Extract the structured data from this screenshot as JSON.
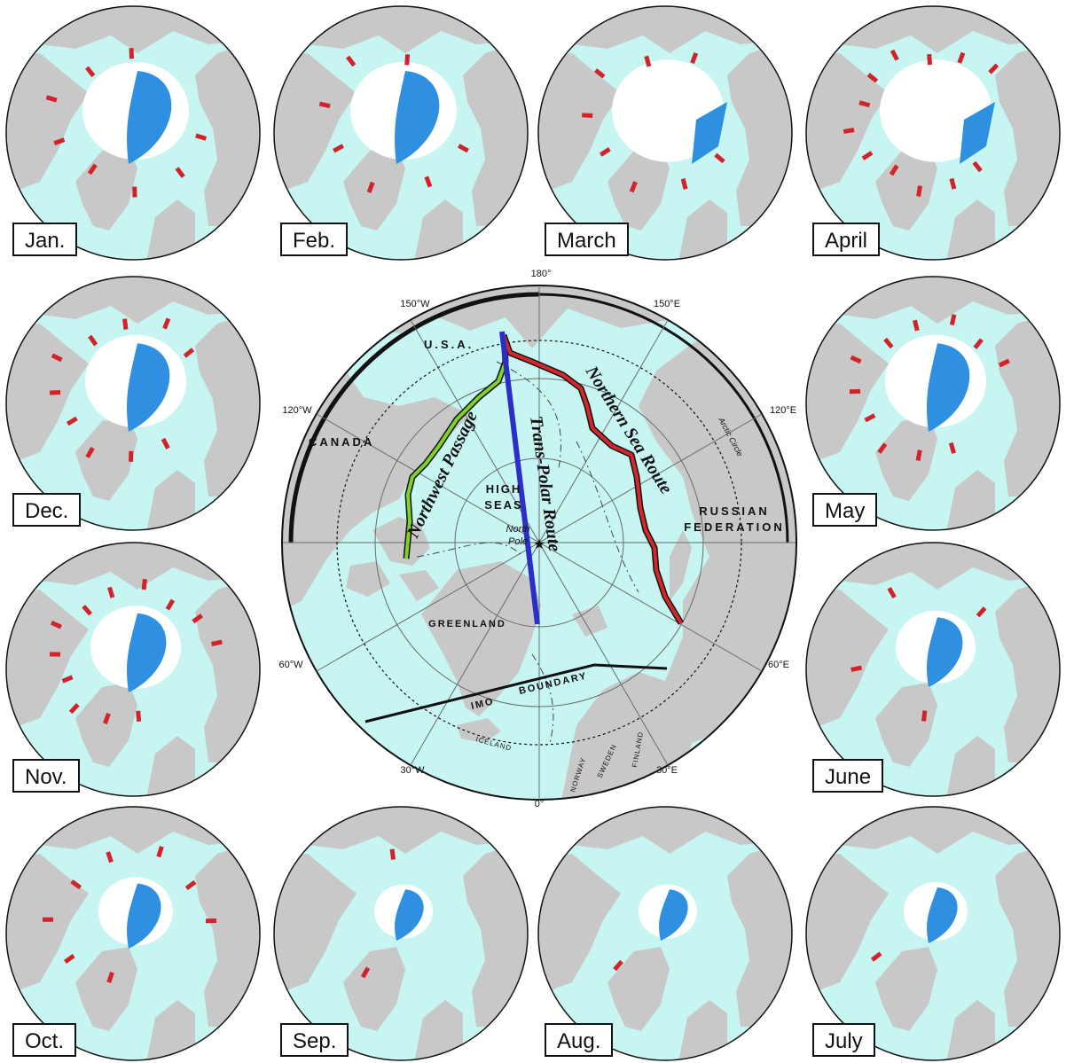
{
  "colors": {
    "ocean": "#c6f5f2",
    "land": "#c8c8c8",
    "ice": "#ffffff",
    "open_water": "#2f8fe0",
    "red_change": "#d2232a",
    "border": "#111111",
    "northwest_passage": "#7fd22a",
    "transpolar_route": "#2b2fc8",
    "northern_sea_route": "#d6262b"
  },
  "months": [
    {
      "label": "Jan.",
      "pos": "top-1"
    },
    {
      "label": "Feb.",
      "pos": "top-2"
    },
    {
      "label": "March",
      "pos": "top-3"
    },
    {
      "label": "April",
      "pos": "top-4"
    },
    {
      "label": "Dec.",
      "pos": "left-1"
    },
    {
      "label": "May",
      "pos": "right-1"
    },
    {
      "label": "Nov.",
      "pos": "left-2"
    },
    {
      "label": "June",
      "pos": "right-2"
    },
    {
      "label": "Oct.",
      "pos": "bottom-1"
    },
    {
      "label": "Sep.",
      "pos": "bottom-2"
    },
    {
      "label": "Aug.",
      "pos": "bottom-3"
    },
    {
      "label": "July",
      "pos": "bottom-4"
    }
  ],
  "center_map": {
    "meridians": {
      "m180": "180°",
      "m150w": "150°W",
      "m150e": "150°E",
      "m120w": "120°W",
      "m120e": "120°E",
      "m60w": "60°W",
      "m60e": "60°E",
      "m30w": "30°W",
      "m30e": "30°E",
      "m0": "0°"
    },
    "labels": {
      "usa": "U.S.A.",
      "canada": "CANADA",
      "high": "HIGH",
      "seas": "SEAS",
      "north": "North",
      "pole": "Pole",
      "russian": "RUSSIAN",
      "federation": "FEDERATION",
      "greenland": "GREENLAND",
      "iceland": "ICELAND",
      "norway": "NORWAY",
      "sweden": "SWEDEN",
      "finland": "FINLAND",
      "arctic_circle": "Arctic Circle",
      "imo": "IMO",
      "boundary": "BOUNDARY"
    },
    "routes": {
      "northwest_passage": "Northwest Passage",
      "transpolar": "Trans-Polar Route",
      "northern_sea": "Northern Sea Route"
    }
  }
}
